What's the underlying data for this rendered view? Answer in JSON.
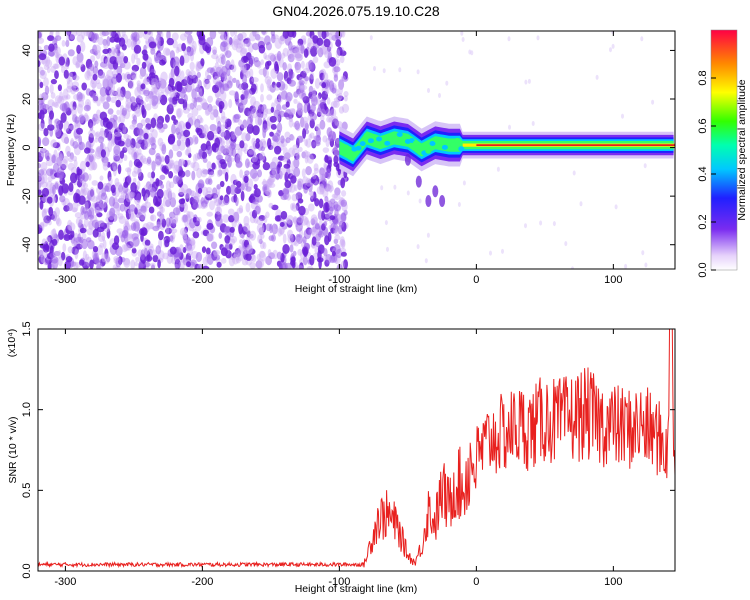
{
  "title": "GN04.2026.075.19.10.C28",
  "colors": {
    "snr_line": "#e8201e",
    "frame": "#000000",
    "spectrogram_noise": "#6a1fd6",
    "ridge_core": "#e32020"
  },
  "chart_data": [
    {
      "id": "spectrogram",
      "type": "heatmap",
      "xlabel": "Height of straight line (km)",
      "ylabel": "Frequency (Hz)",
      "xlim": [
        -320,
        145
      ],
      "ylim": [
        -50,
        48
      ],
      "x_ticks": [
        -300,
        -200,
        -100,
        0,
        100
      ],
      "y_ticks": [
        -40,
        -20,
        0,
        20,
        40
      ],
      "grid": false,
      "noise_extent_km": [
        -320,
        -95
      ],
      "ridge": {
        "start_km": -100,
        "end_km": 145,
        "center_hz": [
          [
            -100,
            0
          ],
          [
            -90,
            -3
          ],
          [
            -80,
            4
          ],
          [
            -70,
            2
          ],
          [
            -60,
            4
          ],
          [
            -50,
            3
          ],
          [
            -40,
            -1
          ],
          [
            -30,
            2
          ],
          [
            -20,
            1
          ],
          [
            -10,
            1
          ],
          [
            0,
            1
          ],
          [
            50,
            1
          ],
          [
            100,
            1
          ],
          [
            145,
            1
          ]
        ],
        "tail_hz": [
          [
            -50,
            -5
          ],
          [
            -42,
            -14
          ],
          [
            -35,
            -22
          ],
          [
            -30,
            -18
          ],
          [
            -25,
            -22
          ]
        ]
      },
      "colorbar": {
        "label": "Normalized spectral amplitude",
        "ticks": [
          "0.0",
          "0.2",
          "0.4",
          "0.6",
          "0.8"
        ],
        "range": [
          0,
          1
        ]
      }
    },
    {
      "id": "snr",
      "type": "line",
      "xlabel": "Height of straight line (km)",
      "ylabel": "SNR (10 * v/v)",
      "exponent_label": "(x10⁴)",
      "xlim": [
        -320,
        145
      ],
      "ylim": [
        0,
        1.5
      ],
      "x_ticks": [
        -300,
        -200,
        -100,
        0,
        100
      ],
      "y_ticks": [
        "0.0",
        "0.5",
        "1.0",
        "1.5"
      ],
      "grid": false,
      "series": [
        {
          "x": [
            -320,
            -300,
            -250,
            -200,
            -150,
            -100,
            -82,
            -78,
            -72,
            -65,
            -58,
            -50,
            -45,
            -40,
            -35,
            -30,
            -25,
            -20,
            -15,
            -10,
            -5,
            0,
            10,
            20,
            30,
            40,
            50,
            60,
            70,
            80,
            90,
            100,
            110,
            120,
            130,
            140,
            142,
            145
          ],
          "y": [
            0.04,
            0.04,
            0.04,
            0.04,
            0.04,
            0.04,
            0.04,
            0.15,
            0.32,
            0.35,
            0.28,
            0.1,
            0.05,
            0.15,
            0.38,
            0.3,
            0.5,
            0.4,
            0.58,
            0.5,
            0.65,
            0.7,
            0.82,
            0.85,
            0.9,
            0.88,
            0.95,
            0.92,
            0.95,
            0.98,
            0.92,
            0.9,
            0.88,
            0.9,
            0.85,
            0.75,
            1.5,
            0.65
          ]
        }
      ]
    }
  ]
}
